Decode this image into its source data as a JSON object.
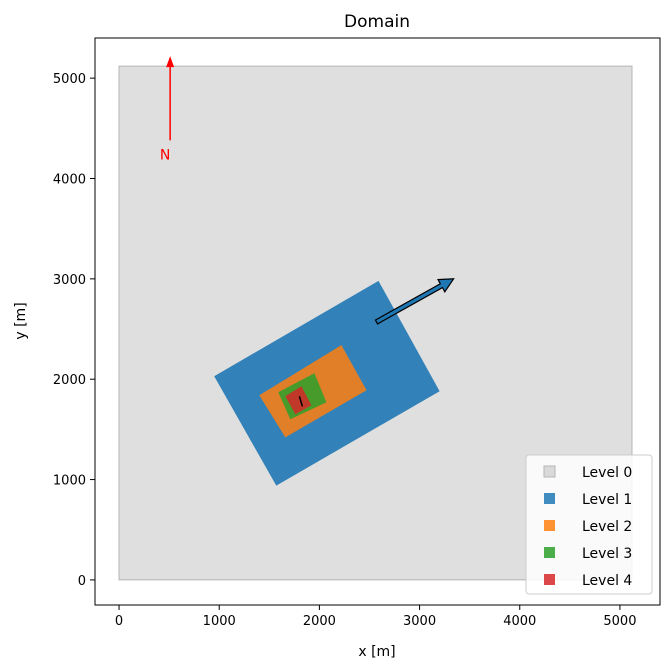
{
  "chart_data": {
    "type": "area",
    "title": "Domain",
    "xlabel": "x [m]",
    "ylabel": "y [m]",
    "xlim": [
      -240,
      5400
    ],
    "ylim": [
      -250,
      5400
    ],
    "xticks": [
      0,
      1000,
      2000,
      3000,
      4000,
      5000
    ],
    "yticks": [
      0,
      1000,
      2000,
      3000,
      4000,
      5000
    ],
    "grid": false,
    "legend_position": "lower-right",
    "levels": [
      {
        "name": "Level 0",
        "color": "#d9d9d9",
        "opacity": 0.85,
        "corners": [
          [
            0,
            0
          ],
          [
            5120,
            0
          ],
          [
            5120,
            5120
          ],
          [
            0,
            5120
          ]
        ]
      },
      {
        "name": "Level 1",
        "color": "#1f77b4",
        "opacity": 0.9,
        "corners": [
          [
            950,
            2030
          ],
          [
            2590,
            2980
          ],
          [
            3200,
            1880
          ],
          [
            1570,
            940
          ]
        ]
      },
      {
        "name": "Level 2",
        "color": "#ff7f0e",
        "opacity": 0.85,
        "corners": [
          [
            1400,
            1840
          ],
          [
            2220,
            2340
          ],
          [
            2470,
            1890
          ],
          [
            1660,
            1420
          ]
        ]
      },
      {
        "name": "Level 3",
        "color": "#2ca02c",
        "opacity": 0.85,
        "corners": [
          [
            1590,
            1870
          ],
          [
            1950,
            2060
          ],
          [
            2070,
            1770
          ],
          [
            1710,
            1600
          ]
        ]
      },
      {
        "name": "Level 4",
        "color": "#d62728",
        "opacity": 0.85,
        "corners": [
          [
            1660,
            1830
          ],
          [
            1820,
            1930
          ],
          [
            1920,
            1740
          ],
          [
            1760,
            1650
          ]
        ]
      }
    ],
    "wind_arrow": {
      "from": [
        2570,
        2570
      ],
      "to": [
        3340,
        3000
      ],
      "color": "#1f77b4"
    },
    "north_arrow": {
      "label": "N",
      "base": [
        510,
        4380
      ],
      "tip": [
        510,
        5220
      ],
      "color": "#ff0000"
    },
    "center_marker": {
      "from": [
        1800,
        1830
      ],
      "to": [
        1830,
        1730
      ],
      "color": "#000000"
    }
  }
}
